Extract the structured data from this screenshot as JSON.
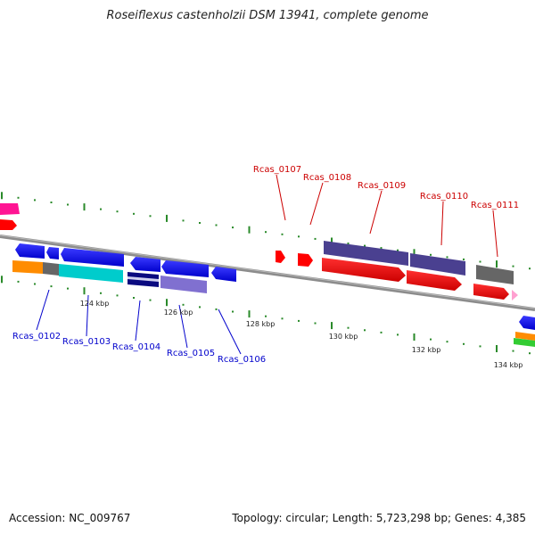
{
  "title": "Roseiflexus castenholzii DSM 13941, complete genome",
  "footer": {
    "accession": "Accession: NC_009767",
    "topology": "Topology: circular; Length: 5,723,298 bp; Genes: 4,385"
  },
  "kbp_labels": [
    "124 kbp",
    "126 kbp",
    "128 kbp",
    "130 kbp",
    "132 kbp",
    "134 kbp"
  ],
  "gene_labels_top": [
    "Rcas_0107",
    "Rcas_0108",
    "Rcas_0109",
    "Rcas_0110",
    "Rcas_0111"
  ],
  "gene_labels_bottom": [
    "Rcas_0102",
    "Rcas_0103",
    "Rcas_0104",
    "Rcas_0105",
    "Rcas_0106"
  ],
  "colors": {
    "top_label": "#cc0000",
    "bottom_label": "#0000cc",
    "backbone": "#8c8c8c",
    "tick": "#2a8a2a",
    "forward_gene": "#ff0000",
    "reverse_gene": "#0000ff",
    "cyan_feature": "#00cccc",
    "purple_feature": "#4a4090",
    "lavender_feature": "#8070d0",
    "gray_feature": "#666666",
    "orange_feature": "#ff8c00",
    "pink_feature": "#ff1493"
  }
}
